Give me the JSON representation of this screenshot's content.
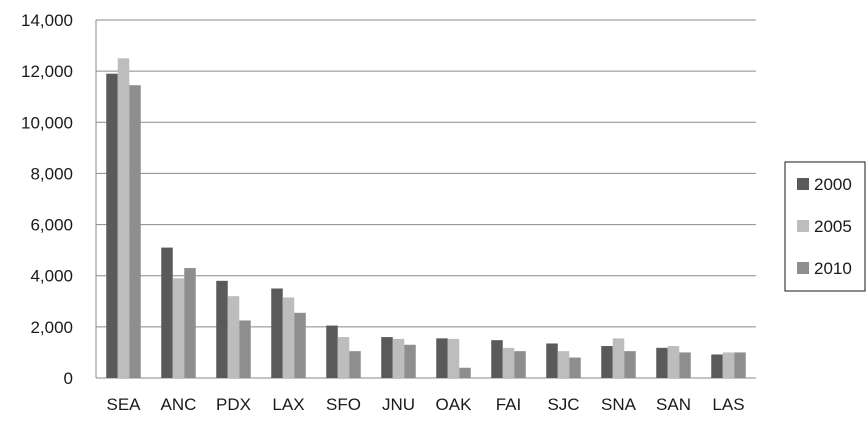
{
  "chart_data": {
    "type": "bar",
    "title": "",
    "xlabel": "",
    "ylabel": "",
    "ylim": [
      0,
      14000
    ],
    "yticks": [
      0,
      2000,
      4000,
      6000,
      8000,
      10000,
      12000,
      14000
    ],
    "ytick_labels": [
      "0",
      "2,000",
      "4,000",
      "6,000",
      "8,000",
      "10,000",
      "12,000",
      "14,000"
    ],
    "grid": true,
    "legend_position": "right",
    "categories": [
      "SEA",
      "ANC",
      "PDX",
      "LAX",
      "SFO",
      "JNU",
      "OAK",
      "FAI",
      "SJC",
      "SNA",
      "SAN",
      "LAS"
    ],
    "series": [
      {
        "name": "2000",
        "color": "#5a5a5a",
        "values": [
          11900,
          5100,
          3800,
          3500,
          2050,
          1600,
          1550,
          1480,
          1350,
          1250,
          1180,
          920
        ]
      },
      {
        "name": "2005",
        "color": "#bdbdbd",
        "values": [
          12500,
          3900,
          3200,
          3150,
          1600,
          1530,
          1530,
          1180,
          1050,
          1550,
          1250,
          1000
        ]
      },
      {
        "name": "2010",
        "color": "#8e8e8e",
        "values": [
          11450,
          4300,
          2250,
          2550,
          1050,
          1300,
          400,
          1050,
          800,
          1050,
          1000,
          1000
        ]
      }
    ]
  }
}
